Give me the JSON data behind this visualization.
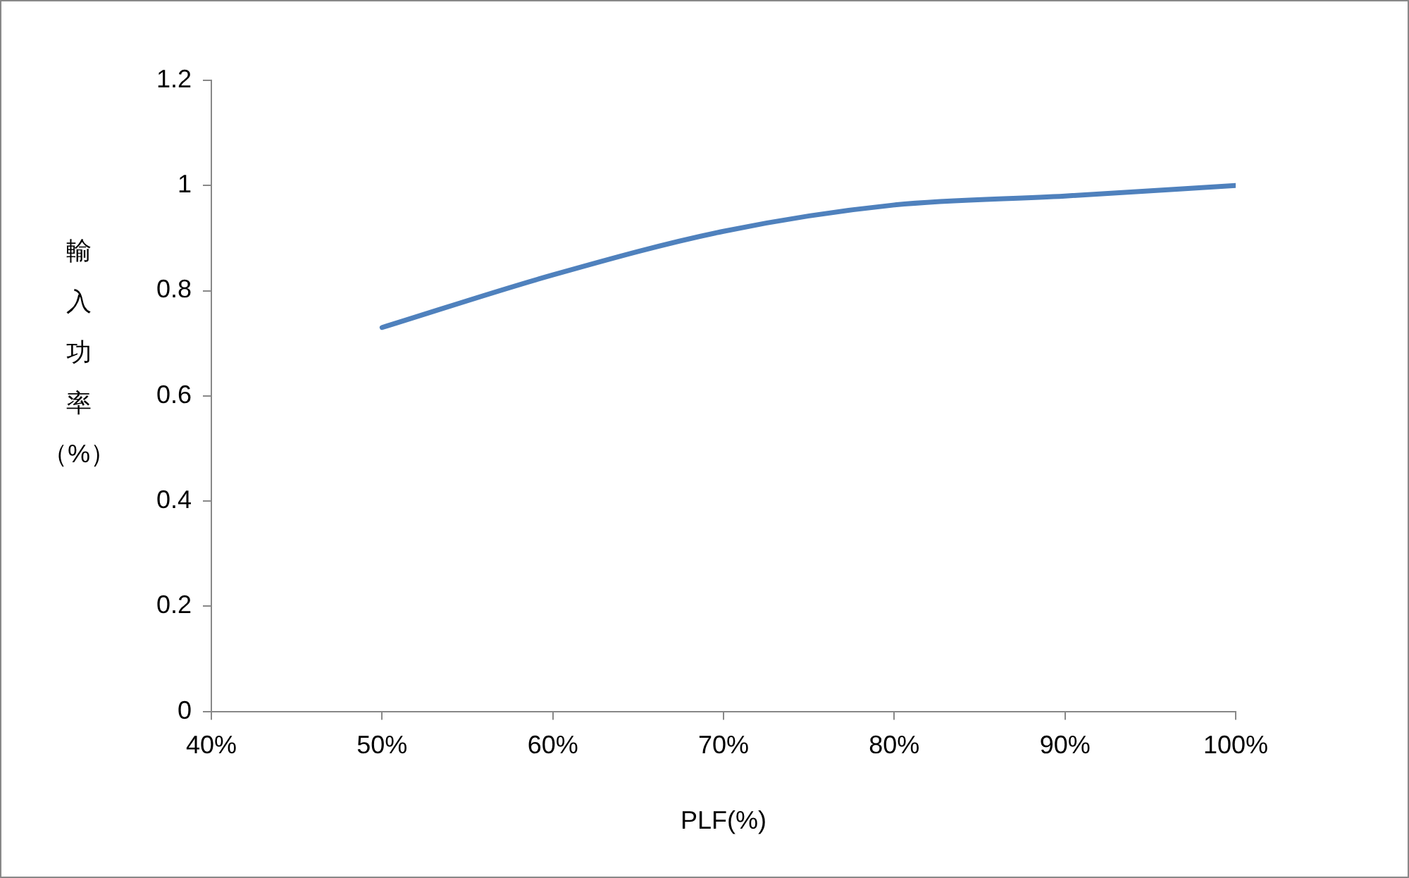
{
  "chart_data": {
    "type": "line",
    "xlabel": "PLF(%)",
    "ylabel": "輸入功率（%）",
    "x": [
      50,
      60,
      70,
      80,
      90,
      100
    ],
    "series": [
      {
        "color": "#4f81bd",
        "values": [
          0.73,
          0.83,
          0.913,
          0.963,
          0.98,
          1.0
        ]
      }
    ],
    "xlim": [
      40,
      100
    ],
    "xticks": [
      {
        "value": 40,
        "label": "40%"
      },
      {
        "value": 50,
        "label": "50%"
      },
      {
        "value": 60,
        "label": "60%"
      },
      {
        "value": 70,
        "label": "70%"
      },
      {
        "value": 80,
        "label": "80%"
      },
      {
        "value": 90,
        "label": "90%"
      },
      {
        "value": 100,
        "label": "100%"
      }
    ],
    "ylim": [
      0,
      1.2
    ],
    "yticks": [
      0,
      0.2,
      0.4,
      0.6,
      0.8,
      1,
      1.2
    ],
    "grid": false,
    "legend": false,
    "marker": "none",
    "line_style": "solid"
  }
}
